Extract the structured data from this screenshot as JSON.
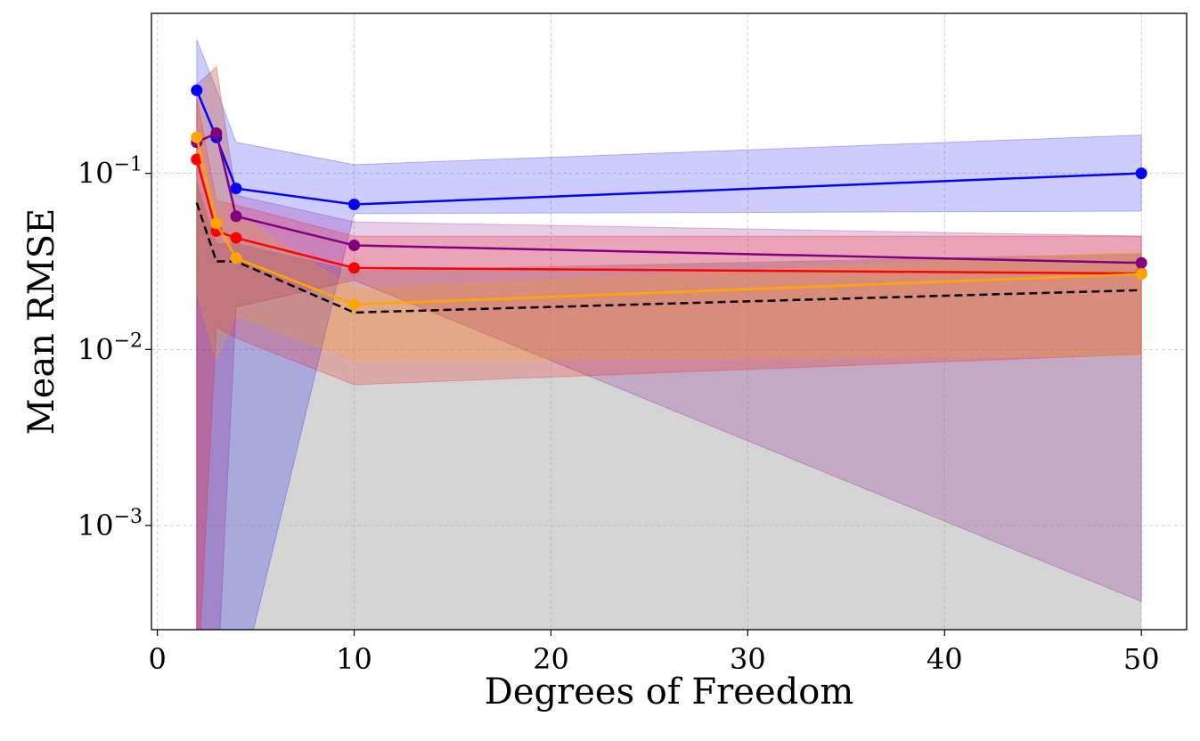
{
  "chart_data": {
    "type": "line",
    "x_label": "Degrees of Freedom",
    "y_label": "Mean RMSE",
    "x": [
      2,
      3,
      4,
      10,
      50
    ],
    "xlim": [
      -0.3,
      52.3
    ],
    "xticks": [
      0,
      10,
      20,
      30,
      40,
      50
    ],
    "ylim": [
      0.000256,
      0.81
    ],
    "log_y": true,
    "yticks": [
      {
        "value": 0.001,
        "label": "10−3"
      },
      {
        "value": 0.01,
        "label": "10−2"
      },
      {
        "value": 0.1,
        "label": "10−1"
      }
    ],
    "grid": true,
    "series": [
      {
        "color": "#000000",
        "dashed": true,
        "markers": false,
        "band_color": "#a9a9a9",
        "values": [
          0.068,
          0.0316,
          0.0316,
          0.0162,
          0.0217
        ],
        "upper": [
          0.09,
          0.04,
          0.04,
          0.028,
          0.035
        ],
        "lower": [
          0.0001,
          0.0001,
          0.0001,
          0.0001,
          0.0001
        ]
      },
      {
        "color": "#0000ff",
        "dashed": false,
        "markers": true,
        "band_color": "#0000ff",
        "values": [
          0.296,
          0.16,
          0.082,
          0.0666,
          0.1
        ],
        "upper": [
          0.575,
          0.3,
          0.15,
          0.112,
          0.165
        ],
        "lower": [
          0.0001,
          0.0001,
          0.0001,
          0.059,
          0.061
        ]
      },
      {
        "color": "#800080",
        "dashed": false,
        "markers": true,
        "band_color": "#800080",
        "values": [
          0.15,
          0.169,
          0.057,
          0.039,
          0.031
        ],
        "upper": [
          0.32,
          0.4,
          0.075,
          0.053,
          0.044
        ],
        "lower": [
          0.0001,
          0.0001,
          0.0174,
          0.0247,
          0.00037
        ]
      },
      {
        "color": "#ff0000",
        "dashed": false,
        "markers": true,
        "band_color": "#ff0000",
        "values": [
          0.12,
          0.047,
          0.043,
          0.029,
          0.027
        ],
        "upper": [
          0.27,
          0.07,
          0.066,
          0.044,
          0.044
        ],
        "lower": [
          0.0001,
          0.0134,
          0.0116,
          0.0063,
          0.0094
        ]
      },
      {
        "color": "#ffa500",
        "dashed": false,
        "markers": true,
        "band_color": "#ffa500",
        "values": [
          0.16,
          0.052,
          0.033,
          0.018,
          0.0268
        ],
        "upper": [
          0.27,
          0.42,
          0.059,
          0.022,
          0.036
        ],
        "lower": [
          0.0207,
          0.0087,
          0.0155,
          0.0087,
          0.0092
        ]
      }
    ]
  }
}
